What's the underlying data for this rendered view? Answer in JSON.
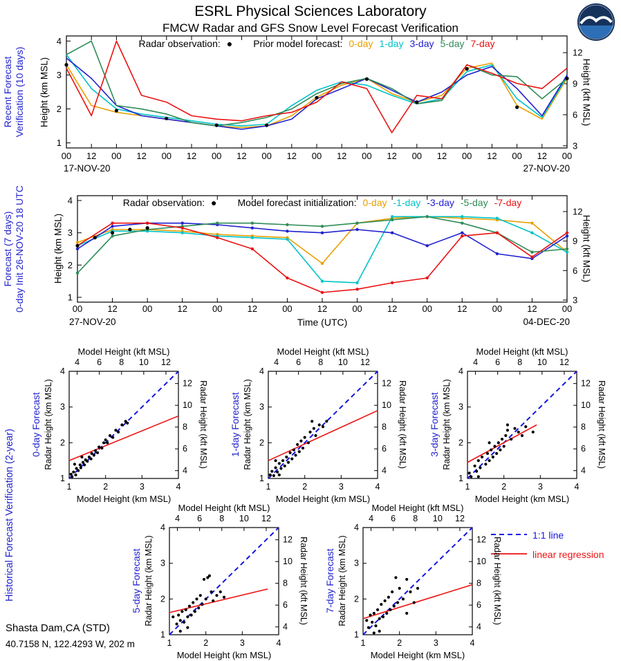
{
  "header": {
    "title": "ESRL Physical Sciences Laboratory",
    "subtitle": "FMCW Radar and GFS Snow Level Forecast Verification"
  },
  "logo": {
    "alt": "NOAA"
  },
  "footer": {
    "station": "Shasta Dam,CA (STD)",
    "coords": "40.7158 N, 122.4293 W, 202 m"
  },
  "colors": {
    "label_blue": "#2323cc",
    "axis_black": "#000000"
  },
  "chart_data": [
    {
      "id": "recent-verification",
      "type": "line",
      "side_label_line1": "Recent Forecast",
      "side_label_line2": "Verification (10 days)",
      "legend": {
        "radar_label": "Radar observation:",
        "radar_marker": "●",
        "model_label": "Prior model forecast:"
      },
      "ylabel_left": "Height (km MSL)",
      "ylabel_right": "Height (kft MSL)",
      "ylim": [
        1,
        4
      ],
      "yticks_km": [
        1,
        2,
        3,
        4
      ],
      "yticks_kft": [
        3,
        6,
        9,
        12
      ],
      "x_hours_range": [
        0,
        240
      ],
      "xtick_interval_hours": 12,
      "x_step_hours": 12,
      "markers": false,
      "xtick_labels": [
        "00",
        "12",
        "00",
        "12",
        "00",
        "12",
        "00",
        "12",
        "00",
        "12",
        "00",
        "12",
        "00",
        "12",
        "00",
        "12",
        "00",
        "12",
        "00",
        "12",
        "00"
      ],
      "date_left": "17-NOV-20",
      "date_right": "27-NOV-20",
      "radar_points": {
        "x_hours": [
          0,
          24,
          48,
          72,
          96,
          120,
          144,
          168,
          192,
          216,
          240
        ],
        "km": [
          3.3,
          1.95,
          1.72,
          1.52,
          1.52,
          2.33,
          2.88,
          2.2,
          3.18,
          2.05,
          2.9
        ]
      },
      "series": [
        {
          "name": "0-day",
          "color": "#e8a000",
          "km": [
            3.3,
            2.1,
            1.9,
            1.8,
            1.7,
            1.6,
            1.5,
            1.45,
            1.5,
            1.8,
            2.35,
            2.7,
            2.9,
            2.45,
            2.2,
            2.4,
            3.2,
            3.35,
            2.1,
            1.7,
            2.9
          ]
        },
        {
          "name": "1-day",
          "color": "#00c3c8",
          "km": [
            3.6,
            2.6,
            2.0,
            1.85,
            1.75,
            1.65,
            1.55,
            1.5,
            1.55,
            2.1,
            2.55,
            2.8,
            2.7,
            2.4,
            2.15,
            2.3,
            3.1,
            3.3,
            2.3,
            1.75,
            2.95
          ]
        },
        {
          "name": "3-day",
          "color": "#2020d0",
          "km": [
            3.5,
            2.9,
            2.1,
            1.8,
            1.7,
            1.6,
            1.5,
            1.4,
            1.5,
            1.7,
            2.3,
            2.6,
            2.9,
            2.55,
            2.2,
            2.5,
            3.0,
            3.25,
            2.6,
            1.8,
            3.0
          ]
        },
        {
          "name": "5-day",
          "color": "#2e8b57",
          "km": [
            3.6,
            4.0,
            2.1,
            2.0,
            1.85,
            1.6,
            1.5,
            1.6,
            1.75,
            2.0,
            2.45,
            2.75,
            2.9,
            2.6,
            2.15,
            2.25,
            3.3,
            3.0,
            2.95,
            2.3,
            2.9
          ]
        },
        {
          "name": "7-day",
          "color": "#ea1212",
          "km": [
            3.2,
            1.8,
            4.0,
            2.4,
            2.2,
            1.8,
            1.7,
            1.65,
            1.8,
            1.9,
            2.2,
            2.8,
            2.6,
            1.3,
            2.4,
            2.3,
            3.3,
            3.05,
            2.75,
            2.6,
            3.2
          ]
        }
      ]
    },
    {
      "id": "forecast-7day",
      "type": "line",
      "side_label_line1": "Forecast (7 days)",
      "side_label_line2": "0-day Init 26-NOV-20 18 UTC",
      "legend": {
        "radar_label": "Radar observation:",
        "radar_marker": "●",
        "model_label": "Model forecast initialization:"
      },
      "ylabel_left": "Height (km MSL)",
      "ylabel_right": "Height (kft MSL)",
      "xlabel": "Time (UTC)",
      "ylim": [
        1,
        4
      ],
      "yticks_km": [
        1,
        2,
        3,
        4
      ],
      "yticks_kft": [
        3,
        6,
        9,
        12
      ],
      "x_hours_range": [
        0,
        168
      ],
      "xtick_interval_hours": 12,
      "x_step_hours": 12,
      "markers": true,
      "xtick_labels": [
        "00",
        "12",
        "00",
        "12",
        "00",
        "12",
        "00",
        "12",
        "00",
        "12",
        "00",
        "12",
        "00",
        "12",
        "00"
      ],
      "date_left": "27-NOV-20",
      "date_right": "04-DEC-20",
      "radar_points": {
        "x_hours": [
          0,
          6,
          12,
          18,
          24
        ],
        "km": [
          2.6,
          2.85,
          3.0,
          3.1,
          3.15
        ]
      },
      "series": [
        {
          "name": "0-day",
          "color": "#e8a000",
          "km": [
            2.7,
            3.1,
            3.1,
            3.05,
            2.95,
            2.9,
            2.85,
            2.05,
            3.3,
            3.45,
            3.5,
            3.45,
            3.4,
            3.3,
            2.4
          ]
        },
        {
          "name": "-1-day",
          "color": "#00c3c8",
          "km": [
            2.6,
            3.05,
            3.05,
            3.0,
            2.9,
            2.85,
            2.8,
            1.5,
            1.45,
            3.5,
            3.5,
            3.5,
            3.45,
            3.0,
            2.4
          ]
        },
        {
          "name": "-3-day",
          "color": "#2020d0",
          "km": [
            2.5,
            3.2,
            3.3,
            3.3,
            3.25,
            3.15,
            3.05,
            3.0,
            3.1,
            3.0,
            2.6,
            3.0,
            2.35,
            2.2,
            2.9
          ]
        },
        {
          "name": "-5-day",
          "color": "#2e8b57",
          "km": [
            1.75,
            2.9,
            3.1,
            3.2,
            3.3,
            3.3,
            3.25,
            3.2,
            3.3,
            3.4,
            3.5,
            3.3,
            3.0,
            2.4,
            2.5
          ]
        },
        {
          "name": "-7-day",
          "color": "#ea1212",
          "km": [
            2.6,
            3.3,
            3.3,
            3.15,
            2.85,
            2.5,
            1.6,
            1.15,
            1.25,
            1.45,
            1.6,
            2.9,
            3.0,
            2.25,
            3.0
          ]
        }
      ]
    },
    {
      "id": "historical-verification",
      "type": "scatter",
      "section_label": "Historical Forecast Verification (2-year)",
      "xlabel_top": "Model Height (kft MSL)",
      "xlabel_bottom": "Model Height (km MSL)",
      "ylabel_left": "Radar Height (km MSL)",
      "ylabel_right": "Radar Height (kft MSL)",
      "xlim": [
        1,
        4
      ],
      "ylim": [
        1,
        4
      ],
      "ticks_km": [
        1,
        2,
        3,
        4
      ],
      "ticks_kft": [
        4,
        6,
        8,
        10,
        12
      ],
      "one_to_one": {
        "label": "1:1 line",
        "color": "#1515e0"
      },
      "regression_legend": {
        "label": "linear regression",
        "color": "#ee1111"
      },
      "plots": [
        {
          "label": "0-day Forecast",
          "regression": [
            [
              1,
              1.5
            ],
            [
              4,
              2.75
            ]
          ],
          "points": [
            [
              1.05,
              1.12
            ],
            [
              1.08,
              1.05
            ],
            [
              1.12,
              1.18
            ],
            [
              1.18,
              1.1
            ],
            [
              1.2,
              1.28
            ],
            [
              1.25,
              1.22
            ],
            [
              1.3,
              1.38
            ],
            [
              1.32,
              1.3
            ],
            [
              1.38,
              1.45
            ],
            [
              1.42,
              1.38
            ],
            [
              1.45,
              1.52
            ],
            [
              1.5,
              1.48
            ],
            [
              1.55,
              1.6
            ],
            [
              1.6,
              1.55
            ],
            [
              1.62,
              1.7
            ],
            [
              1.68,
              1.65
            ],
            [
              1.72,
              1.78
            ],
            [
              1.78,
              1.72
            ],
            [
              1.82,
              1.88
            ],
            [
              1.9,
              1.85
            ],
            [
              1.95,
              2.0
            ],
            [
              2.0,
              2.08
            ],
            [
              2.05,
              2.0
            ],
            [
              2.12,
              2.2
            ],
            [
              2.2,
              2.15
            ],
            [
              2.28,
              2.35
            ],
            [
              2.35,
              2.3
            ],
            [
              2.45,
              2.5
            ],
            [
              2.55,
              2.6
            ],
            [
              1.35,
              1.6
            ],
            [
              1.15,
              1.4
            ],
            [
              2.6,
              2.55
            ]
          ]
        },
        {
          "label": "1-day Forecast",
          "regression": [
            [
              1,
              1.5
            ],
            [
              4,
              2.9
            ]
          ],
          "points": [
            [
              1.05,
              1.1
            ],
            [
              1.1,
              1.2
            ],
            [
              1.15,
              1.08
            ],
            [
              1.2,
              1.3
            ],
            [
              1.25,
              1.18
            ],
            [
              1.3,
              1.42
            ],
            [
              1.35,
              1.28
            ],
            [
              1.4,
              1.5
            ],
            [
              1.45,
              1.35
            ],
            [
              1.5,
              1.6
            ],
            [
              1.55,
              1.45
            ],
            [
              1.6,
              1.72
            ],
            [
              1.65,
              1.55
            ],
            [
              1.7,
              1.8
            ],
            [
              1.75,
              1.65
            ],
            [
              1.8,
              1.95
            ],
            [
              1.85,
              1.75
            ],
            [
              1.9,
              2.05
            ],
            [
              1.95,
              1.85
            ],
            [
              2.0,
              2.15
            ],
            [
              2.1,
              2.0
            ],
            [
              2.15,
              2.3
            ],
            [
              2.25,
              2.4
            ],
            [
              2.3,
              2.2
            ],
            [
              2.4,
              2.5
            ],
            [
              2.5,
              2.45
            ],
            [
              2.6,
              2.6
            ],
            [
              1.3,
              1.1
            ],
            [
              1.2,
              1.5
            ],
            [
              2.2,
              2.6
            ]
          ]
        },
        {
          "label": "3-day Forecast",
          "regression": [
            [
              1,
              1.45
            ],
            [
              2.9,
              2.5
            ]
          ],
          "points": [
            [
              1.05,
              1.15
            ],
            [
              1.1,
              1.05
            ],
            [
              1.2,
              1.35
            ],
            [
              1.25,
              1.2
            ],
            [
              1.3,
              1.5
            ],
            [
              1.35,
              1.3
            ],
            [
              1.4,
              1.6
            ],
            [
              1.5,
              1.4
            ],
            [
              1.55,
              1.7
            ],
            [
              1.6,
              1.5
            ],
            [
              1.65,
              1.8
            ],
            [
              1.7,
              1.6
            ],
            [
              1.75,
              1.9
            ],
            [
              1.8,
              1.7
            ],
            [
              1.85,
              2.0
            ],
            [
              1.9,
              1.8
            ],
            [
              1.95,
              2.1
            ],
            [
              2.0,
              1.9
            ],
            [
              2.05,
              2.2
            ],
            [
              2.1,
              2.35
            ],
            [
              2.2,
              2.1
            ],
            [
              2.3,
              2.4
            ],
            [
              2.4,
              2.3
            ],
            [
              2.5,
              2.2
            ],
            [
              2.6,
              2.45
            ],
            [
              2.8,
              2.3
            ],
            [
              1.3,
              1.05
            ],
            [
              1.6,
              2.0
            ],
            [
              2.1,
              2.5
            ]
          ]
        },
        {
          "label": "5-day Forecast",
          "regression": [
            [
              1,
              1.62
            ],
            [
              3.7,
              2.28
            ]
          ],
          "points": [
            [
              1.1,
              1.5
            ],
            [
              1.2,
              1.3
            ],
            [
              1.25,
              1.55
            ],
            [
              1.3,
              1.4
            ],
            [
              1.35,
              1.65
            ],
            [
              1.4,
              1.35
            ],
            [
              1.45,
              1.7
            ],
            [
              1.5,
              1.5
            ],
            [
              1.55,
              1.8
            ],
            [
              1.6,
              1.55
            ],
            [
              1.65,
              1.9
            ],
            [
              1.7,
              1.65
            ],
            [
              1.75,
              2.0
            ],
            [
              1.8,
              1.75
            ],
            [
              1.85,
              2.1
            ],
            [
              1.9,
              1.85
            ],
            [
              1.95,
              2.55
            ],
            [
              2.0,
              2.0
            ],
            [
              2.05,
              2.6
            ],
            [
              2.1,
              2.65
            ],
            [
              2.15,
              2.2
            ],
            [
              2.2,
              1.95
            ],
            [
              2.3,
              2.1
            ],
            [
              2.4,
              2.2
            ],
            [
              2.5,
              2.05
            ],
            [
              1.3,
              1.1
            ],
            [
              1.5,
              1.2
            ]
          ]
        },
        {
          "label": "7-day Forecast",
          "regression": [
            [
              1,
              1.45
            ],
            [
              4,
              2.4
            ]
          ],
          "points": [
            [
              1.1,
              1.4
            ],
            [
              1.15,
              1.2
            ],
            [
              1.2,
              1.55
            ],
            [
              1.25,
              1.35
            ],
            [
              1.3,
              1.6
            ],
            [
              1.35,
              1.25
            ],
            [
              1.4,
              1.7
            ],
            [
              1.45,
              1.45
            ],
            [
              1.5,
              1.85
            ],
            [
              1.55,
              1.5
            ],
            [
              1.6,
              1.95
            ],
            [
              1.65,
              1.6
            ],
            [
              1.7,
              2.05
            ],
            [
              1.75,
              1.7
            ],
            [
              1.8,
              2.2
            ],
            [
              1.85,
              1.8
            ],
            [
              1.9,
              2.6
            ],
            [
              1.95,
              1.9
            ],
            [
              2.0,
              2.3
            ],
            [
              2.1,
              2.0
            ],
            [
              2.2,
              2.55
            ],
            [
              2.3,
              2.2
            ],
            [
              2.4,
              1.9
            ],
            [
              2.5,
              2.3
            ],
            [
              1.3,
              1.05
            ],
            [
              1.45,
              1.1
            ],
            [
              2.2,
              1.6
            ]
          ]
        }
      ]
    }
  ]
}
